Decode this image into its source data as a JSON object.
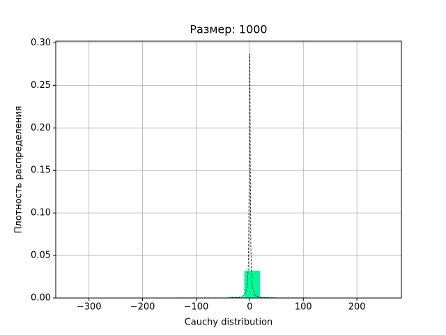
{
  "chart_data": {
    "type": "histogram",
    "title": "Размер: 1000",
    "x_label": "Cauchy distribution",
    "y_label": "Плотность распределения",
    "bins": [
      -333,
      -303.65,
      -274.3,
      -244.95,
      -215.6,
      -186.25,
      -156.9,
      -127.55,
      -98.2,
      -68.85,
      -39.5,
      -10.15,
      19.2,
      48.55,
      77.9,
      107.25,
      136.6,
      165.95,
      195.3,
      224.65,
      254
    ],
    "values": [
      3.4e-05,
      0,
      0,
      0,
      0,
      0,
      0,
      0,
      0,
      0.0001,
      0.0012,
      0.032,
      0.0009,
      0.0001,
      0,
      0,
      0,
      0,
      0,
      3.4e-05
    ],
    "color": "#00fa9a",
    "curve": {
      "x": [
        -333,
        -40,
        -20,
        -10,
        -5,
        -3,
        -2,
        -1,
        -0.33,
        0.33,
        1,
        2,
        3,
        5,
        10,
        20,
        40,
        254
      ],
      "values": [
        2.9e-06,
        0.000199,
        0.000793,
        0.00315,
        0.01224,
        0.0318,
        0.0637,
        0.159,
        0.287,
        0.287,
        0.159,
        0.0637,
        0.0318,
        0.01224,
        0.00315,
        0.000793,
        0.000199,
        4.9e-06
      ],
      "color": "#000000",
      "style": "dashed"
    },
    "xlim": [
      -362,
      283
    ],
    "ylim": [
      0,
      0.302
    ],
    "xticks": [
      {
        "value": -300,
        "label": "−300"
      },
      {
        "value": -200,
        "label": "−200"
      },
      {
        "value": -100,
        "label": "−100"
      },
      0,
      100,
      200
    ],
    "yticks": [
      {
        "value": 0,
        "label": "0.00"
      },
      0.05,
      {
        "value": 0.1,
        "label": "0.10"
      },
      0.15,
      {
        "value": 0.2,
        "label": "0.20"
      },
      0.25,
      {
        "value": 0.3,
        "label": "0.30"
      }
    ],
    "grid": true
  }
}
